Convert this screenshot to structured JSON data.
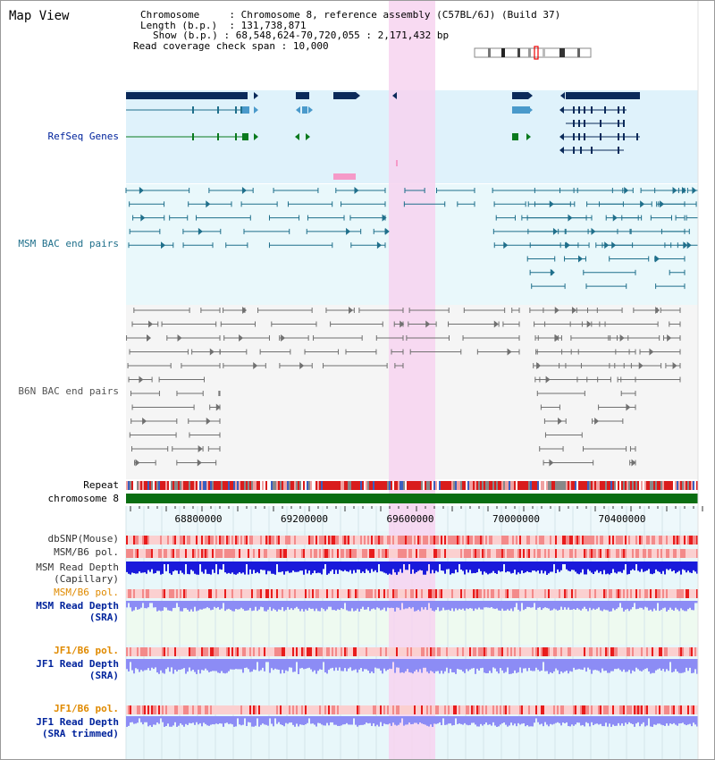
{
  "view_title": "Map View",
  "info": {
    "chromosome_key": "Chromosome",
    "chromosome_value": "Chromosome 8, reference assembly (C57BL/6J) (Build 37)",
    "length_key": "Length (b.p.)",
    "length_value": "131,738,871",
    "show_key": "Show (b.p.)",
    "show_value": "68,548,624-70,720,055 : 2,171,432 bp",
    "coverage_key": "Read coverage check span",
    "coverage_value": "10,000"
  },
  "tracks": {
    "refseq_label": "RefSeq Genes",
    "msm_bac_label": "MSM BAC end pairs",
    "b6n_bac_label": "B6N BAC end pairs",
    "repeat_label": "Repeat",
    "chromosome_label": "chromosome 8",
    "dbsnp_label": "dbSNP(Mouse)",
    "msm_b6_pol_label_1": "MSM/B6 pol.",
    "msm_read_depth_cap_label": "MSM Read Depth\n(Capillary)",
    "msm_b6_pol_label_2": "MSM/B6 pol.",
    "msm_read_depth_sra_label": "MSM Read Depth\n(SRA)",
    "jf1_b6_pol_label_1": "JF1/B6 pol.",
    "jf1_read_depth_sra_label": "JF1 Read Depth\n(SRA)",
    "jf1_b6_pol_label_2": "JF1/B6 pol.",
    "jf1_read_depth_trim_label": "JF1 Read Depth\n(SRA trimmed)"
  },
  "axis": {
    "ticks": [
      "68800000",
      "69200000",
      "69600000",
      "70000000",
      "70400000"
    ]
  },
  "colors": {
    "gene_dark": "#0b2a5a",
    "gene_light": "#4a9acb",
    "gene_green": "#0a7a1e",
    "bac_msm": "#1f6f8b",
    "bac_b6n": "#707070",
    "highlight": "#f7d3f0",
    "label_blue": "#00239c",
    "label_orange": "#e08a00",
    "depth_blue": "#1a1adb",
    "depth_light_blue": "#8c8cf5"
  }
}
